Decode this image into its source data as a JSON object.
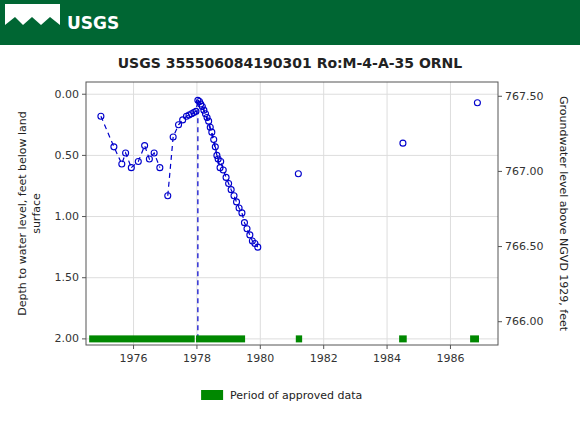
{
  "chart_data": {
    "type": "scatter",
    "title": "USGS 355506084190301 Ro:M-4-A-35 ORNL",
    "annotations": [
      "USGS"
    ],
    "y_label": "Depth to water level, feet below land\nsurface",
    "y2_label": "Groundwater level above NGVD 1929, feet",
    "xlim": [
      1974.5,
      1987.5
    ],
    "xticks": [
      1976,
      1978,
      1980,
      1982,
      1984,
      1986
    ],
    "ylim": [
      2.05,
      -0.1
    ],
    "yticks": [
      {
        "value": 0.0,
        "label": "0.00"
      },
      {
        "value": 0.5,
        "label": "0.50"
      },
      {
        "value": 1.0,
        "label": "1.00"
      },
      {
        "value": 1.5,
        "label": "1.50"
      },
      {
        "value": 2.0,
        "label": "2.00"
      }
    ],
    "y2lim": [
      765.845,
      767.595
    ],
    "y2ticks": [
      {
        "value": 767.5,
        "label": "767.50"
      },
      {
        "value": 767.0,
        "label": "767.00"
      },
      {
        "value": 766.5,
        "label": "766.50"
      },
      {
        "value": 766.0,
        "label": "766.00"
      }
    ],
    "grid": true,
    "legend": "bottom",
    "series": [
      {
        "type": "line",
        "line_style": "dashed",
        "color": "#0000cc",
        "x": [
          1974.97,
          1975.38,
          1975.63,
          1975.75,
          1975.93
        ],
        "values": [
          0.18,
          0.43,
          0.57,
          0.48,
          0.6
        ]
      },
      {
        "type": "line",
        "line_style": "dashed",
        "color": "#0000cc",
        "x": [
          1975.93,
          1976.15,
          1976.35,
          1976.5,
          1976.65,
          1976.83
        ],
        "values": [
          0.6,
          0.55,
          0.42,
          0.53,
          0.48,
          0.6
        ]
      },
      {
        "type": "line",
        "line_style": "dashed",
        "color": "#0000cc",
        "x": [
          1977.08,
          1977.25,
          1977.42,
          1977.55,
          1977.67,
          1977.75,
          1977.83,
          1977.9,
          1977.97,
          1978.03
        ],
        "values": [
          0.83,
          0.35,
          0.25,
          0.21,
          0.18,
          0.17,
          0.16,
          0.15,
          0.14,
          0.05
        ]
      },
      {
        "type": "line",
        "line_style": "dashed",
        "color": "#0000cc",
        "x": [
          1978.03,
          1978.08,
          1978.12,
          1978.17,
          1978.22,
          1978.27,
          1978.32,
          1978.37,
          1978.42,
          1978.47,
          1978.53,
          1978.58
        ],
        "values": [
          0.05,
          0.06,
          0.08,
          0.1,
          0.13,
          0.16,
          0.19,
          0.22,
          0.27,
          0.31,
          0.37,
          0.43
        ]
      },
      {
        "type": "line",
        "line_style": "dashed",
        "color": "#0000cc",
        "x": [
          1978.03,
          1978.17,
          1978.3,
          1978.45,
          1978.63,
          1978.73
        ],
        "values": [
          0.05,
          0.1,
          0.19,
          0.31,
          0.5,
          0.6
        ]
      },
      {
        "type": "line",
        "line_style": "dashed",
        "color": "#0000cc",
        "x": [
          1978.58,
          1978.67,
          1978.75,
          1978.83,
          1978.92,
          1979.0,
          1979.08,
          1979.17,
          1979.25,
          1979.33,
          1979.42,
          1979.5,
          1979.58,
          1979.67,
          1979.75,
          1979.83,
          1979.92
        ],
        "values": [
          0.43,
          0.53,
          0.55,
          0.62,
          0.68,
          0.73,
          0.78,
          0.83,
          0.88,
          0.93,
          0.97,
          1.05,
          1.1,
          1.15,
          1.2,
          1.22,
          1.25
        ]
      },
      {
        "type": "line",
        "line_style": "dashed",
        "color": "#0000cc",
        "x": [
          1978.03,
          1978.03
        ],
        "values": [
          0.05,
          2.0
        ]
      },
      {
        "type": "scatter",
        "marker": "circle",
        "color": "#0000cc",
        "x": [
          1974.97,
          1975.38,
          1975.63,
          1975.75,
          1975.93,
          1976.15,
          1976.35,
          1976.5,
          1976.65,
          1976.83,
          1977.08,
          1977.25,
          1977.42,
          1977.55,
          1977.67,
          1977.75,
          1977.83,
          1977.9,
          1977.97,
          1978.03,
          1978.08,
          1978.12,
          1978.17,
          1978.22,
          1978.27,
          1978.32,
          1978.37,
          1978.42,
          1978.47,
          1978.53,
          1978.58,
          1978.63,
          1978.67,
          1978.73,
          1978.75,
          1978.83,
          1978.92,
          1979.0,
          1979.08,
          1979.17,
          1979.25,
          1979.33,
          1979.42,
          1979.5,
          1979.58,
          1979.67,
          1979.75,
          1979.83,
          1979.92,
          1981.2,
          1984.5,
          1986.85
        ],
        "values": [
          0.18,
          0.43,
          0.57,
          0.48,
          0.6,
          0.55,
          0.42,
          0.53,
          0.48,
          0.6,
          0.83,
          0.35,
          0.25,
          0.21,
          0.18,
          0.17,
          0.16,
          0.15,
          0.14,
          0.05,
          0.06,
          0.08,
          0.1,
          0.13,
          0.16,
          0.19,
          0.22,
          0.27,
          0.31,
          0.37,
          0.43,
          0.5,
          0.53,
          0.6,
          0.55,
          0.62,
          0.68,
          0.73,
          0.78,
          0.83,
          0.88,
          0.93,
          0.97,
          1.05,
          1.1,
          1.15,
          1.2,
          1.22,
          1.25,
          0.65,
          0.4,
          0.07
        ]
      },
      {
        "name": "Period of approved data",
        "type": "bar",
        "orientation": "horizontal",
        "color": "#008800",
        "x_start": [
          1974.6,
          1977.97,
          1981.12,
          1984.38,
          1986.62
        ],
        "x_end": [
          1977.93,
          1979.52,
          1981.32,
          1984.62,
          1986.9
        ],
        "values": [
          2.0,
          2.0,
          2.0,
          2.0,
          2.0
        ]
      }
    ]
  }
}
